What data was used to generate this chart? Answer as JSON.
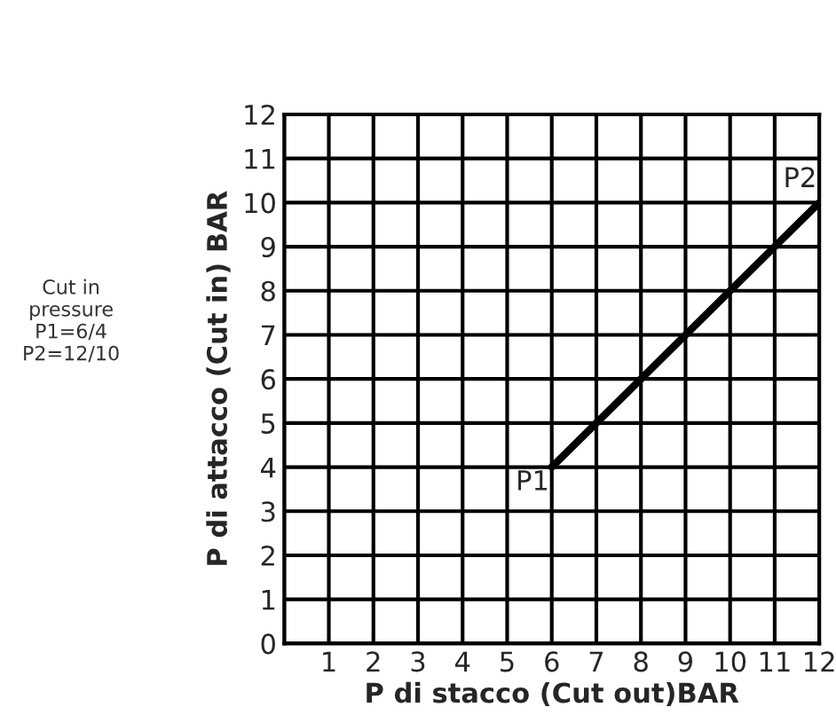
{
  "chart_data": {
    "type": "line",
    "xlabel": "P di stacco (Cut out)BAR",
    "ylabel": "P di attacco (Cut in) BAR",
    "x": [
      6,
      12
    ],
    "series": [
      {
        "color": "#000000",
        "values": [
          4,
          10
        ]
      }
    ],
    "xlim": [
      0,
      12
    ],
    "ylim": [
      0,
      12
    ],
    "xticks": [
      {
        "value": 0,
        "label": null
      },
      1,
      2,
      3,
      4,
      5,
      6,
      7,
      8,
      9,
      10,
      11,
      12
    ],
    "yticks": [
      0,
      1,
      2,
      3,
      4,
      5,
      6,
      7,
      8,
      9,
      10,
      11,
      12
    ],
    "grid": true,
    "line_style": "solid",
    "marker": "none",
    "annotations": [
      {
        "text": "P1",
        "x": 6,
        "y": 4
      },
      {
        "text": "P2",
        "x": 12,
        "y": 10
      },
      "Cut in\npressure\nP1=6/4\nP2=12/10"
    ]
  }
}
